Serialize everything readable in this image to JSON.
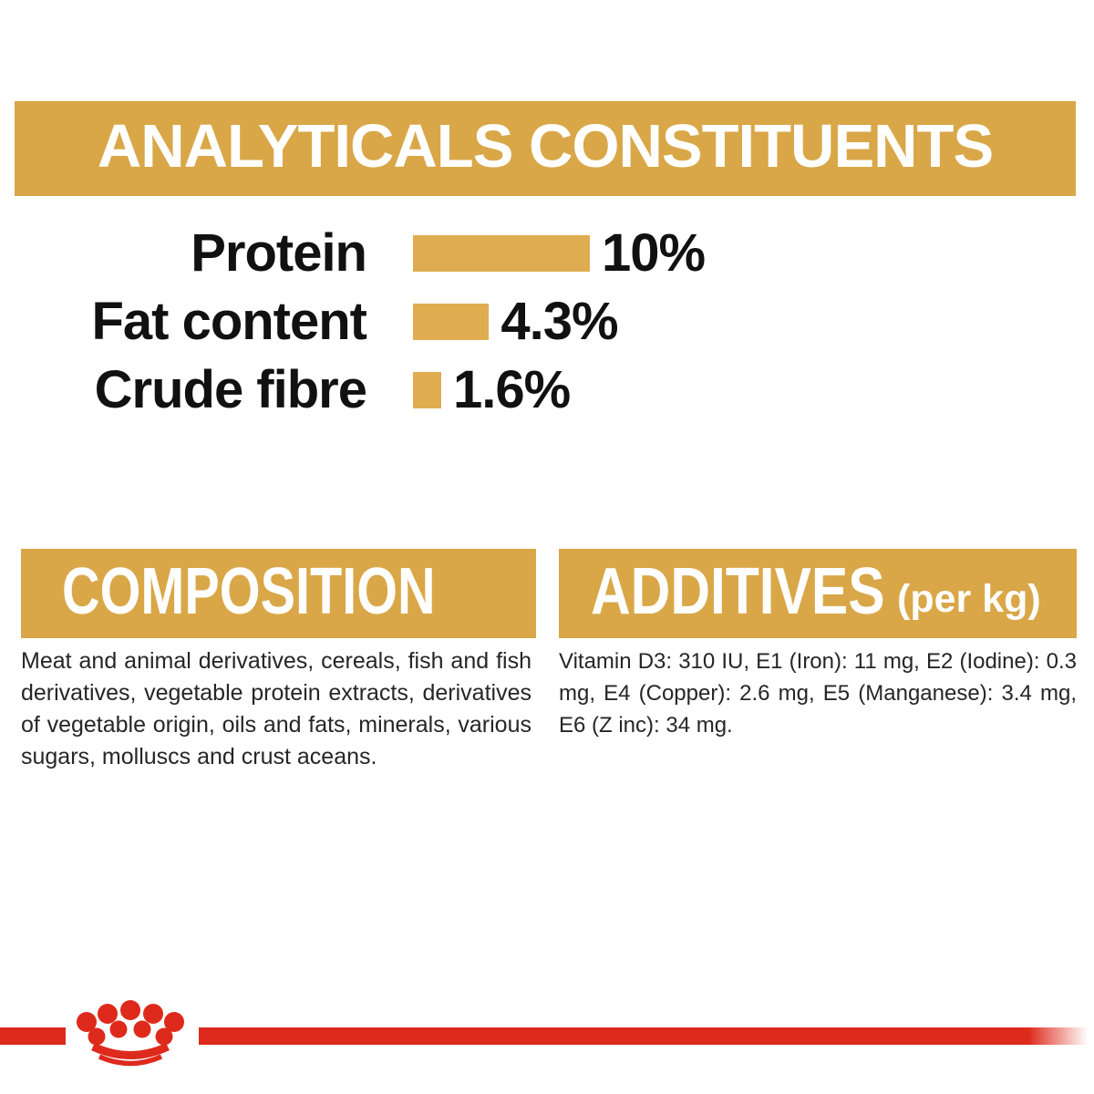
{
  "colors": {
    "banner_gold": "#D9A747",
    "bar_gold": "#DFAD4F",
    "brand_red": "#DE2A1C",
    "body_text": "#262626",
    "heading_text": "#FFFFFF"
  },
  "analyticals": {
    "title": "ANALYTICALS CONSTITUENTS",
    "rows": [
      {
        "label": "Protein",
        "value": "10%",
        "percent": 10
      },
      {
        "label": "Fat content",
        "value": "4.3%",
        "percent": 4.3
      },
      {
        "label": "Crude fibre",
        "value": "1.6%",
        "percent": 1.6
      }
    ]
  },
  "composition": {
    "title": "COMPOSITION",
    "body": "Meat and animal derivatives, cereals, fish and fish derivatives, vegetable protein extracts, derivatives of vegetable origin, oils and fats, minerals, various sugars, molluscs and crust aceans."
  },
  "additives": {
    "title": "ADDITIVES",
    "unit_label": "(per kg)",
    "body": "Vitamin D3: 310 IU, E1 (Iron): 11 mg, E2 (Iodine): 0.3 mg, E4 (Copper): 2.6 mg, E5 (Manganese): 3.4 mg, E6 (Z inc): 34 mg."
  },
  "footer": {
    "logo_icon": "royal-canin-crown-icon"
  },
  "chart_data": {
    "type": "bar",
    "orientation": "horizontal",
    "title": "ANALYTICALS CONSTITUENTS",
    "categories": [
      "Protein",
      "Fat content",
      "Crude fibre"
    ],
    "values": [
      10,
      4.3,
      1.6
    ],
    "unit": "%",
    "data_labels": [
      "10%",
      "4.3%",
      "1.6%"
    ],
    "bar_color": "#DFAD4F",
    "axes": "none — bars labeled directly with values",
    "legend": "none",
    "grid": false
  }
}
